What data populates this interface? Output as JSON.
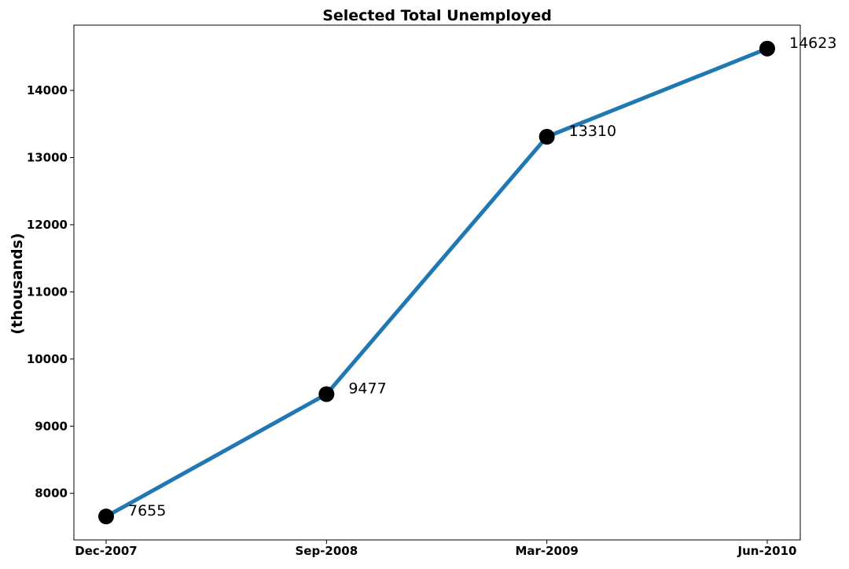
{
  "chart_data": {
    "type": "line",
    "title": "Selected Total Unemployed",
    "xlabel": "",
    "ylabel": "(thousands)",
    "categories": [
      "Dec-2007",
      "Sep-2008",
      "Mar-2009",
      "Jun-2010"
    ],
    "series": [
      {
        "values": [
          7655,
          9477,
          13310,
          14623
        ],
        "color": "#1f77b4",
        "marker_color": "#000000"
      }
    ],
    "data_labels": [
      "7655",
      "9477",
      "13310",
      "14623"
    ],
    "yticks": [
      8000,
      9000,
      10000,
      11000,
      12000,
      13000,
      14000
    ],
    "ylim": [
      7306,
      14972
    ],
    "grid": false,
    "legend": "none"
  }
}
